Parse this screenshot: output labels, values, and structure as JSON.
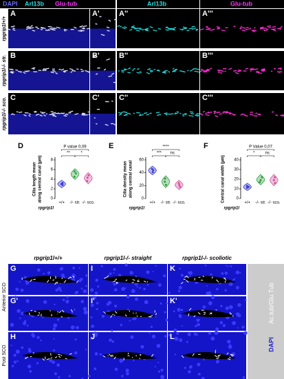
{
  "top": {
    "headers": [
      [
        "DAPI",
        "Arl13b",
        "Glu-tub"
      ],
      [
        "Arl13b"
      ],
      [
        "Glu-tub"
      ]
    ],
    "row_labels": [
      "rpgrip1l+/+",
      "rpgrip1l-/- str.",
      "rpgrip1l-/- sco."
    ],
    "letters": [
      [
        "A",
        "A'",
        "A''",
        "A'''"
      ],
      [
        "B",
        "B'",
        "B''",
        "B'''"
      ],
      [
        "C",
        "C'",
        "C''",
        "C'''"
      ]
    ]
  },
  "chart_data": [
    {
      "type": "violin",
      "letter": "D",
      "y_label": [
        "Cilia length mean",
        "along central canal (µm)"
      ],
      "x_label": "rpgrip1l",
      "categories": [
        "+/+",
        "-/- str.",
        "-/- sco."
      ],
      "values": [
        [
          2.8,
          3.2,
          3.0
        ],
        [
          4.5,
          5.2,
          5.6
        ],
        [
          3.6,
          4.3,
          4.8
        ]
      ],
      "colors": [
        "#3a3ad0",
        "#2e9e3e",
        "#d0509c"
      ],
      "ylim": [
        0,
        8
      ],
      "yticks": [
        0,
        2,
        4,
        6,
        8
      ],
      "annotations": [
        "**",
        "*",
        "P value 0,09"
      ]
    },
    {
      "type": "violin",
      "letter": "E",
      "y_label": [
        "Cilia density mean",
        "along central canal"
      ],
      "x_label": "rpgrip1l",
      "categories": [
        "+/+",
        "-/- str.",
        "-/- sco."
      ],
      "values": [
        [
          41,
          44,
          46
        ],
        [
          21,
          26,
          31
        ],
        [
          18,
          21,
          24
        ]
      ],
      "colors": [
        "#3a3ad0",
        "#2e9e3e",
        "#d0509c"
      ],
      "ylim": [
        0,
        60
      ],
      "yticks": [
        0,
        20,
        40,
        60
      ],
      "annotations": [
        "***",
        "ns",
        "****"
      ]
    },
    {
      "type": "violin",
      "letter": "F",
      "y_label": [
        "Central canal width (µm)"
      ],
      "x_label": "rpgrip1l",
      "categories": [
        "+/+",
        "-/- str.",
        "-/- sco."
      ],
      "values": [
        [
          11,
          12,
          13
        ],
        [
          17,
          19,
          22
        ],
        [
          16,
          19,
          22
        ]
      ],
      "colors": [
        "#3a3ad0",
        "#2e9e3e",
        "#d0509c"
      ],
      "ylim": [
        0,
        40
      ],
      "yticks": [
        0,
        10,
        20,
        30,
        40
      ],
      "annotations": [
        "*",
        "ns",
        "P Value 0,07"
      ]
    }
  ],
  "bottom": {
    "headers": [
      "rpgrip1l+/+",
      "rpgrip1l-/- straight",
      "rpgrip1l-/- scoliotic"
    ],
    "row_labels": [
      "Anterior SCO",
      "Post SCO"
    ],
    "stain_labels": [
      "DAPI",
      "Ac.tub/Glu.Tub"
    ],
    "letters": [
      [
        "G",
        "I",
        "K"
      ],
      [
        "G'",
        "I'",
        "K'"
      ],
      [
        "H",
        "J",
        "L"
      ]
    ]
  }
}
